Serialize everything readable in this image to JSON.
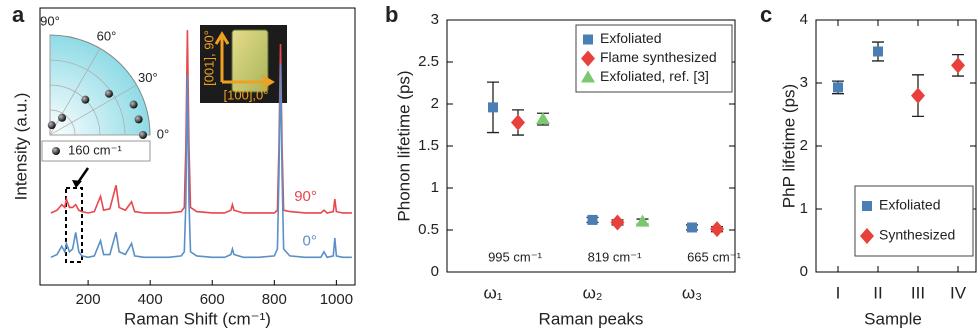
{
  "chart_data": [
    {
      "type": "line",
      "panel_label": "a",
      "x_label": "Raman Shift (cm⁻¹)",
      "y_label": "Intensity (a.u.)",
      "x": [
        80,
        100,
        115,
        125,
        130,
        140,
        150,
        160,
        170,
        180,
        200,
        220,
        240,
        250,
        270,
        290,
        300,
        320,
        340,
        350,
        380,
        420,
        460,
        500,
        510,
        515,
        520,
        525,
        530,
        550,
        600,
        640,
        660,
        665,
        670,
        700,
        750,
        800,
        810,
        815,
        820,
        825,
        830,
        850,
        900,
        950,
        960,
        970,
        990,
        995,
        1000,
        1020,
        1050
      ],
      "series": [
        {
          "name": "90°",
          "color": "#e8474b",
          "values": [
            26,
            27,
            29,
            28,
            31,
            28,
            28,
            29,
            27,
            26.5,
            26,
            26.5,
            32,
            27,
            27.5,
            36,
            28,
            27,
            30,
            26.5,
            26,
            26,
            26,
            26.5,
            28,
            50,
            92,
            50,
            28,
            26.5,
            26,
            26,
            27,
            29,
            27,
            26,
            26,
            26,
            27,
            50,
            87,
            50,
            27,
            26.5,
            26,
            26,
            27,
            26,
            26.5,
            31,
            26.5,
            26,
            26
          ]
        },
        {
          "name": "0°",
          "color": "#5b8fc7",
          "values": [
            10,
            11,
            14,
            12,
            15,
            12,
            13,
            19,
            12,
            10.5,
            10,
            10.5,
            16,
            11,
            11,
            19,
            12,
            11,
            15,
            10.5,
            10,
            10,
            10,
            10.5,
            12,
            30,
            76,
            30,
            12,
            10.5,
            10,
            10,
            11,
            13,
            11,
            10,
            10,
            10.5,
            13,
            40,
            80,
            40,
            13,
            10.5,
            10,
            10,
            12,
            10,
            10.5,
            17,
            10.5,
            10,
            10
          ]
        }
      ],
      "xlim": [
        45,
        1060
      ],
      "xticks": [
        200,
        400,
        600,
        800,
        1000
      ],
      "ylim": [
        0,
        100
      ],
      "inset_polar": {
        "theta_ticks": [
          {
            "value": 0,
            "label": "0°"
          },
          {
            "value": 30,
            "label": "30°"
          },
          {
            "value": 60,
            "label": "60°"
          },
          {
            "value": 90,
            "label": "90°"
          }
        ],
        "theta": [
          0,
          10,
          20,
          35,
          45,
          55,
          80
        ],
        "r": [
          0.93,
          0.9,
          0.89,
          0.72,
          0.5,
          0.21,
          0.1
        ],
        "rlim": [
          0,
          1
        ],
        "legend": "160 cm⁻¹"
      },
      "inset_image": {
        "y_label": "[001], 90°",
        "x_label": "[100],0°"
      }
    },
    {
      "type": "errorbar",
      "panel_label": "b",
      "x_label": "Raman peaks",
      "y_label": "Phonon lifetime (ps)",
      "categories": [
        "ω₁",
        "ω₂",
        "ω₃"
      ],
      "annotations": [
        "995 cm⁻¹",
        "819 cm⁻¹",
        "665 cm⁻¹"
      ],
      "series": [
        {
          "name": "Exfoliated",
          "color": "#4a7fb5",
          "marker": "square",
          "values": [
            1.96,
            0.62,
            0.53
          ],
          "errors": [
            0.3,
            0.03,
            0.03
          ]
        },
        {
          "name": "Flame synthesized",
          "color": "#e8403a",
          "marker": "diamond",
          "values": [
            1.78,
            0.59,
            0.51
          ],
          "errors": [
            0.15,
            0.03,
            0.03
          ]
        },
        {
          "name": "Exfoliated, ref. [3]",
          "color": "#7bc96f",
          "marker": "triangle",
          "values": [
            1.82,
            0.6,
            null
          ],
          "errors": [
            0.07,
            0.03,
            null
          ]
        }
      ],
      "ylim": [
        0,
        3
      ],
      "yticks": [
        0,
        0.5,
        1,
        1.5,
        2,
        2.5,
        3
      ],
      "legend": "upper right"
    },
    {
      "type": "errorbar",
      "panel_label": "c",
      "x_label": "Sample",
      "y_label": "PhP lifetime (ps)",
      "categories": [
        "I",
        "II",
        "III",
        "IV"
      ],
      "series": [
        {
          "name": "Exfoliated",
          "color": "#4a7fb5",
          "marker": "square",
          "values": [
            2.93,
            3.5,
            null,
            null
          ],
          "errors": [
            0.1,
            0.15,
            null,
            null
          ]
        },
        {
          "name": "Synthesized",
          "color": "#e8403a",
          "marker": "diamond",
          "values": [
            null,
            null,
            2.8,
            3.28
          ],
          "errors": [
            null,
            null,
            0.33,
            0.17
          ]
        }
      ],
      "ylim": [
        0,
        4
      ],
      "yticks": [
        0,
        1,
        2,
        3,
        4
      ],
      "legend": "lower right"
    }
  ]
}
